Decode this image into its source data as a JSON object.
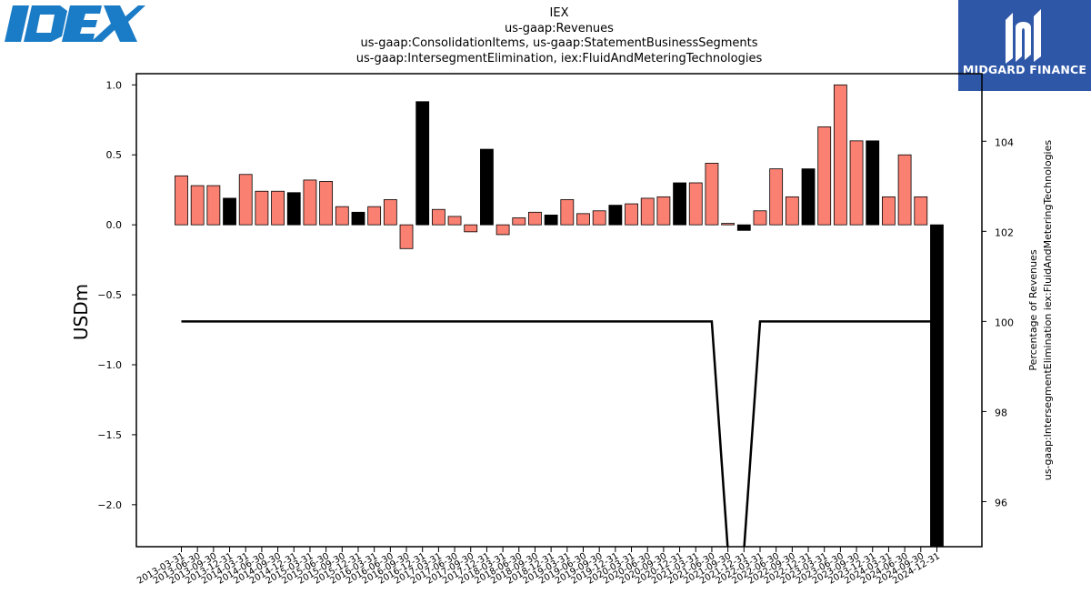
{
  "header": {
    "title_lines": [
      "IEX",
      "us-gaap:Revenues",
      "us-gaap:ConsolidationItems, us-gaap:StatementBusinessSegments",
      "us-gaap:IntersegmentElimination, iex:FluidAndMeteringTechnologies"
    ]
  },
  "logos": {
    "left_icon": "idex-logo",
    "right_brand": "MIDGARD FINANCE",
    "right_bg": "#2e57a8"
  },
  "chart_data": {
    "type": "bar",
    "ylabel": "USDm",
    "y2label_lines": [
      "Percentage of Revenues",
      "us-gaap:IntersegmentElimination iex:FluidAndMeteringTechnologies"
    ],
    "ylim": [
      -2.3,
      1.08
    ],
    "y2lim": [
      95,
      105.5
    ],
    "yticks": [
      "1.0",
      "0.5",
      "0.0",
      "−0.5",
      "−1.0",
      "−1.5",
      "−2.0"
    ],
    "ytick_values": [
      1.0,
      0.5,
      0.0,
      -0.5,
      -1.0,
      -1.5,
      -2.0
    ],
    "y2ticks": [
      "104",
      "102",
      "100",
      "98",
      "96"
    ],
    "y2tick_values": [
      104,
      102,
      100,
      98,
      96
    ],
    "colors": {
      "quarter": "#fa8072",
      "annual": "#000000",
      "line": "#000000"
    },
    "categories": [
      "2013-03-31",
      "2013-06-30",
      "2013-09-30",
      "2013-12-31",
      "2014-03-31",
      "2014-06-30",
      "2014-09-30",
      "2014-12-31",
      "2015-03-31",
      "2015-06-30",
      "2015-09-30",
      "2015-12-31",
      "2016-03-31",
      "2016-06-30",
      "2016-09-30",
      "2016-12-31",
      "2017-03-31",
      "2017-06-30",
      "2017-09-30",
      "2017-12-31",
      "2018-03-31",
      "2018-06-30",
      "2018-09-30",
      "2018-12-31",
      "2019-03-31",
      "2019-06-30",
      "2019-09-30",
      "2019-12-31",
      "2020-03-31",
      "2020-06-30",
      "2020-09-30",
      "2020-12-31",
      "2021-03-31",
      "2021-06-30",
      "2021-09-30",
      "2021-12-31",
      "2022-03-31",
      "2022-06-30",
      "2022-09-30",
      "2022-12-31",
      "2023-03-31",
      "2023-06-30",
      "2023-09-30",
      "2023-12-31",
      "2024-03-31",
      "2024-06-30",
      "2024-09-30",
      "2024-12-31"
    ],
    "series": [
      {
        "values": [
          0.35,
          0.28,
          0.28,
          0.19,
          0.36,
          0.24,
          0.24,
          0.23,
          0.32,
          0.31,
          0.13,
          0.09,
          0.13,
          0.18,
          -0.17,
          0.88,
          0.11,
          0.06,
          -0.05,
          0.54,
          -0.07,
          0.05,
          0.09,
          0.07,
          0.18,
          0.08,
          0.1,
          0.14,
          0.15,
          0.19,
          0.2,
          0.3,
          0.3,
          0.44,
          0.01,
          -0.04,
          0.1,
          0.4,
          0.2,
          0.4,
          0.7,
          1.0,
          0.6,
          0.6,
          0.2,
          0.5,
          0.2,
          -2.3
        ],
        "kinds": [
          "q",
          "q",
          "q",
          "a",
          "q",
          "q",
          "q",
          "a",
          "q",
          "q",
          "q",
          "a",
          "q",
          "q",
          "q",
          "a",
          "q",
          "q",
          "q",
          "a",
          "q",
          "q",
          "q",
          "a",
          "q",
          "q",
          "q",
          "a",
          "q",
          "q",
          "q",
          "a",
          "q",
          "q",
          "q",
          "a",
          "q",
          "q",
          "q",
          "a",
          "q",
          "q",
          "q",
          "a",
          "q",
          "q",
          "q",
          "a"
        ]
      }
    ],
    "line_values": [
      100,
      100,
      100,
      100,
      100,
      100,
      100,
      100,
      100,
      100,
      100,
      100,
      100,
      100,
      100,
      100,
      100,
      100,
      100,
      100,
      100,
      100,
      100,
      100,
      100,
      100,
      100,
      100,
      100,
      100,
      100,
      100,
      100,
      100,
      null,
      null,
      100,
      100,
      100,
      100,
      100,
      100,
      100,
      100,
      100,
      100,
      100,
      100
    ]
  }
}
